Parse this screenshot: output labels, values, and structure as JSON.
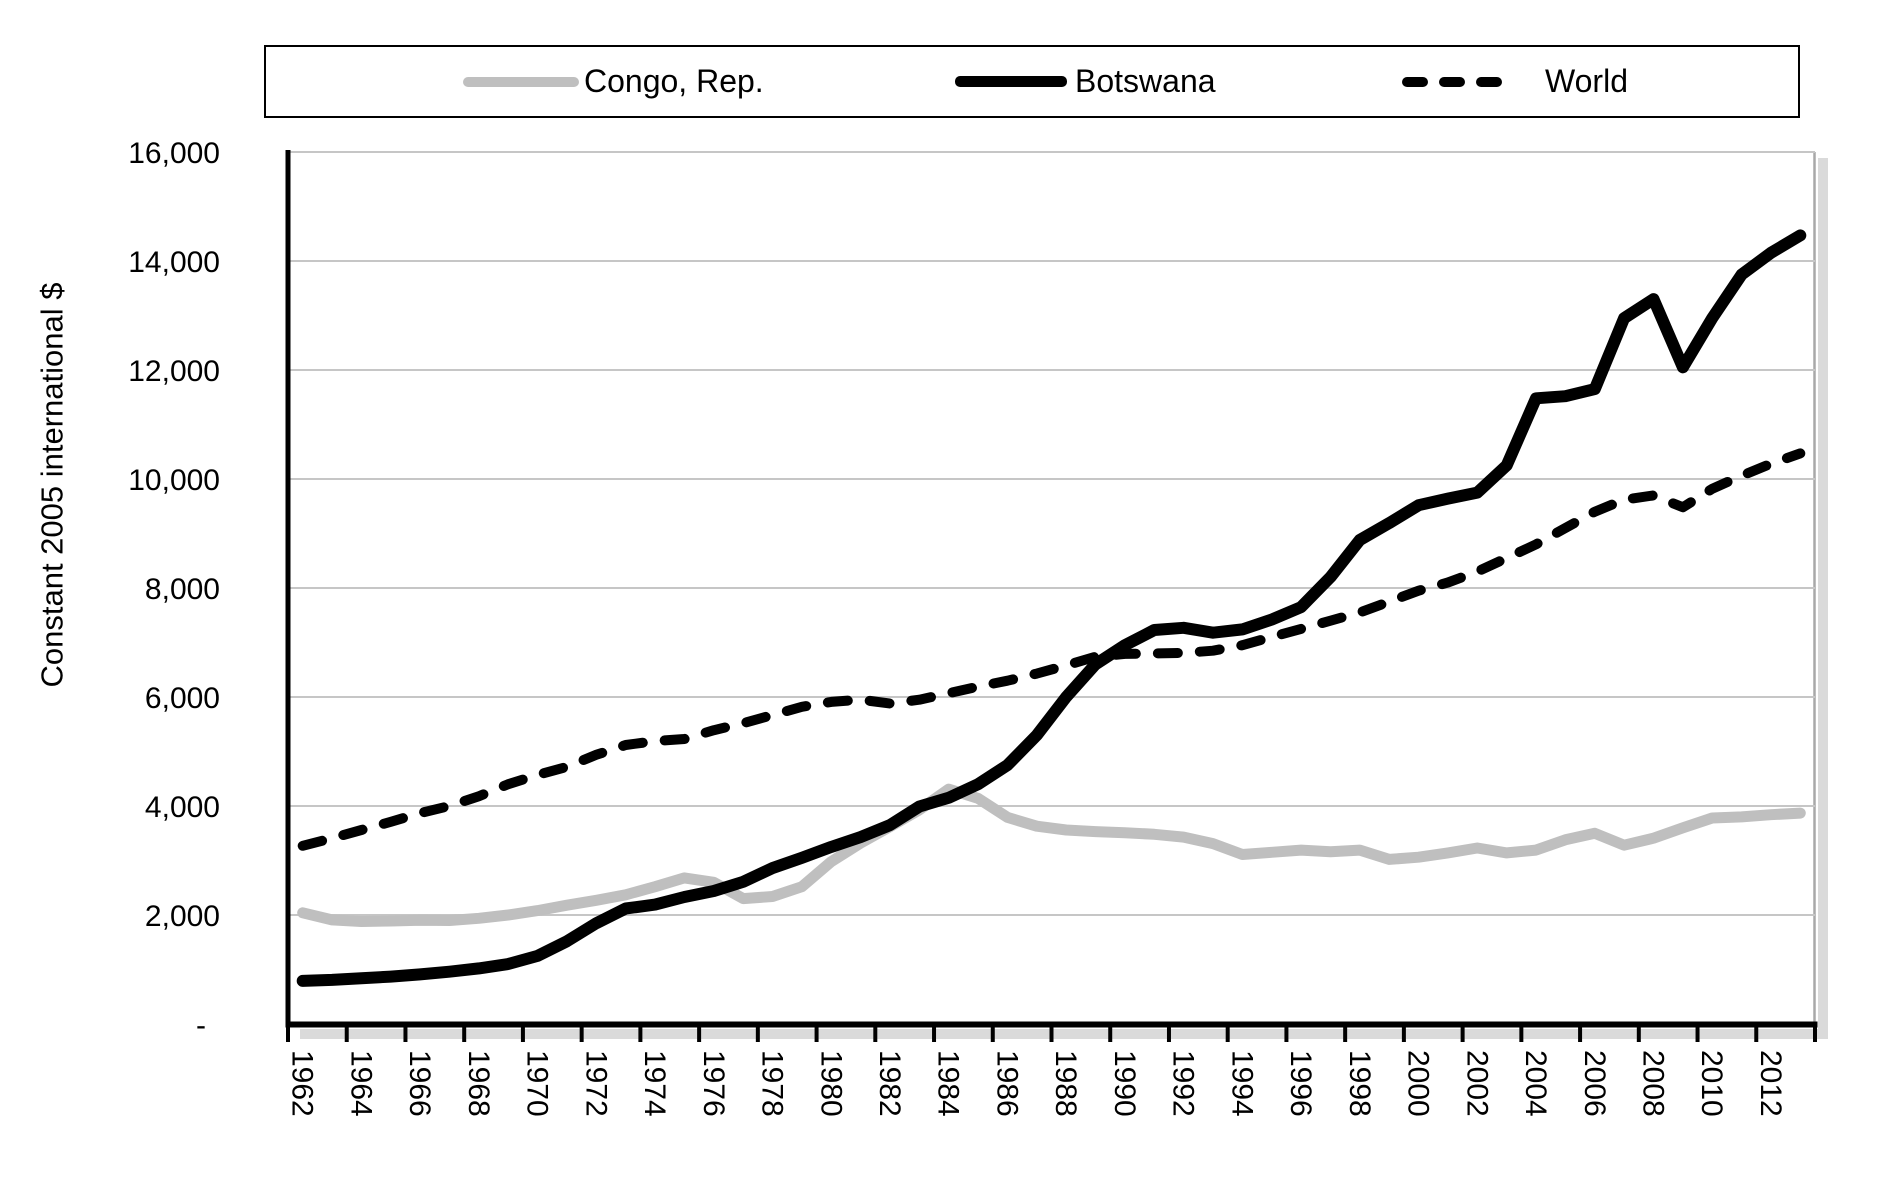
{
  "chart_data": {
    "type": "line",
    "title": "",
    "xlabel": "",
    "ylabel": "Constant 2005 international $",
    "ylim": [
      0,
      16000
    ],
    "ytick_step": 2000,
    "zero_tick_label": "-",
    "xtick_label_every": 2,
    "grid": "horizontal",
    "gridline_color": "#C6C6C6",
    "axis_color": "#000000",
    "shadow_color": "#DADADA",
    "legend_position": "top",
    "x": [
      1962,
      1963,
      1964,
      1965,
      1966,
      1967,
      1968,
      1969,
      1970,
      1971,
      1972,
      1973,
      1974,
      1975,
      1976,
      1977,
      1978,
      1979,
      1980,
      1981,
      1982,
      1983,
      1984,
      1985,
      1986,
      1987,
      1988,
      1989,
      1990,
      1991,
      1992,
      1993,
      1994,
      1995,
      1996,
      1997,
      1998,
      1999,
      2000,
      2001,
      2002,
      2003,
      2004,
      2005,
      2006,
      2007,
      2008,
      2009,
      2010,
      2011,
      2012,
      2013
    ],
    "series": [
      {
        "name": "Congo, Rep.",
        "color": "#BFBFBF",
        "dash": "solid",
        "width": 11,
        "values": [
          2040,
          1910,
          1880,
          1890,
          1905,
          1900,
          1940,
          2000,
          2080,
          2180,
          2270,
          2370,
          2520,
          2680,
          2600,
          2300,
          2340,
          2520,
          2980,
          3320,
          3620,
          3930,
          4310,
          4140,
          3790,
          3630,
          3560,
          3530,
          3510,
          3480,
          3430,
          3310,
          3110,
          3150,
          3190,
          3160,
          3190,
          3020,
          3060,
          3140,
          3230,
          3140,
          3190,
          3380,
          3500,
          3280,
          3410,
          3600,
          3780,
          3800,
          3840,
          3870
        ]
      },
      {
        "name": "Botswana",
        "color": "#000000",
        "dash": "solid",
        "width": 12,
        "values": [
          790,
          810,
          840,
          870,
          910,
          960,
          1020,
          1100,
          1250,
          1520,
          1850,
          2120,
          2190,
          2330,
          2440,
          2610,
          2860,
          3050,
          3250,
          3430,
          3650,
          3990,
          4150,
          4400,
          4750,
          5300,
          6000,
          6600,
          6950,
          7230,
          7270,
          7180,
          7240,
          7420,
          7650,
          8200,
          8880,
          9190,
          9520,
          9640,
          9750,
          10250,
          11480,
          11520,
          11650,
          12950,
          13300,
          12050,
          12950,
          13750,
          14150,
          14470
        ]
      },
      {
        "name": "World",
        "color": "#000000",
        "dash": "dashed",
        "width": 10,
        "values": [
          3270,
          3410,
          3560,
          3710,
          3870,
          4000,
          4180,
          4400,
          4570,
          4720,
          4940,
          5120,
          5190,
          5230,
          5390,
          5520,
          5670,
          5820,
          5910,
          5950,
          5880,
          5950,
          6070,
          6190,
          6300,
          6430,
          6580,
          6740,
          6790,
          6800,
          6810,
          6850,
          6950,
          7100,
          7250,
          7400,
          7550,
          7750,
          7950,
          8100,
          8300,
          8550,
          8800,
          9100,
          9400,
          9620,
          9700,
          9480,
          9820,
          10060,
          10280,
          10470
        ]
      }
    ]
  }
}
